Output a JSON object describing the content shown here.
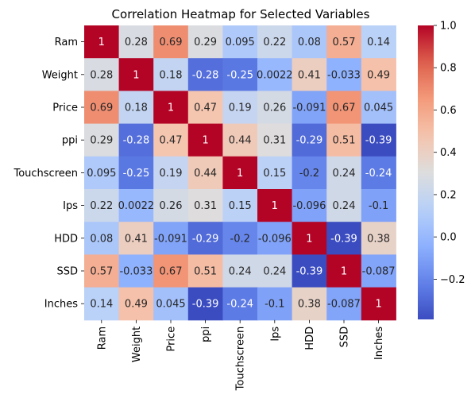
{
  "chart_data": {
    "type": "heatmap",
    "title": "Correlation Heatmap for Selected Variables",
    "xlabel": "",
    "ylabel": "",
    "rows": [
      "Ram",
      "Weight",
      "Price",
      "ppi",
      "Touchscreen",
      "Ips",
      "HDD",
      "SSD",
      "Inches"
    ],
    "cols": [
      "Ram",
      "Weight",
      "Price",
      "ppi",
      "Touchscreen",
      "Ips",
      "HDD",
      "SSD",
      "Inches"
    ],
    "values": [
      [
        1,
        0.28,
        0.69,
        0.29,
        0.095,
        0.22,
        0.08,
        0.57,
        0.14
      ],
      [
        0.28,
        1,
        0.18,
        -0.28,
        -0.25,
        0.0022,
        0.41,
        -0.033,
        0.49
      ],
      [
        0.69,
        0.18,
        1,
        0.47,
        0.19,
        0.26,
        -0.091,
        0.67,
        0.045
      ],
      [
        0.29,
        -0.28,
        0.47,
        1,
        0.44,
        0.31,
        -0.29,
        0.51,
        -0.39
      ],
      [
        0.095,
        -0.25,
        0.19,
        0.44,
        1,
        0.15,
        -0.2,
        0.24,
        -0.24
      ],
      [
        0.22,
        0.0022,
        0.26,
        0.31,
        0.15,
        1,
        -0.096,
        0.24,
        -0.1
      ],
      [
        0.08,
        0.41,
        -0.091,
        -0.29,
        -0.2,
        -0.096,
        1,
        -0.39,
        0.38
      ],
      [
        0.57,
        -0.033,
        0.67,
        0.51,
        0.24,
        0.24,
        -0.39,
        1,
        -0.087
      ],
      [
        0.14,
        0.49,
        0.045,
        -0.39,
        -0.24,
        -0.1,
        0.38,
        -0.087,
        1
      ]
    ],
    "colormap": "coolwarm",
    "colorbar": {
      "range": [
        -0.39,
        1
      ],
      "ticks": [
        -0.2,
        0.0,
        0.2,
        0.4,
        0.6,
        0.8,
        1.0
      ],
      "tick_labels": [
        "−0.2",
        "0.0",
        "0.2",
        "0.4",
        "0.6",
        "0.8",
        "1.0"
      ]
    },
    "annotations": true,
    "grid": false,
    "legend": "colorbar at right"
  }
}
